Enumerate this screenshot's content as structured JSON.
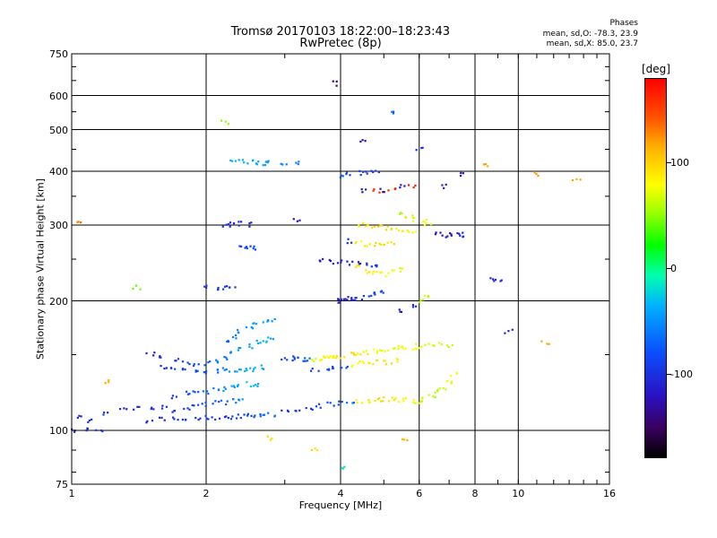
{
  "chart_data": {
    "type": "scatter",
    "title": "Tromsø 20170103 18:22:00–18:23:43",
    "subtitle": "RwPretec (8p)",
    "xlabel": "Frequency [MHz]",
    "ylabel": "Stationary phase Virtual Height [km]",
    "x_scale": "log",
    "y_scale": "log",
    "xlim": [
      1,
      16
    ],
    "ylim": [
      75,
      750
    ],
    "x_ticks": [
      "1",
      "2",
      "4",
      "6",
      "8",
      "10",
      "16"
    ],
    "y_ticks": [
      "75",
      "100",
      "200",
      "300",
      "400",
      "500",
      "600",
      "750"
    ],
    "grid": true,
    "colorbar": {
      "label": "[deg]",
      "ticks": [
        "100",
        "0",
        "-100"
      ],
      "range": [
        -180,
        180
      ]
    },
    "annotations": {
      "phase_title": "Phases",
      "phase_o": "mean, sd,O: -78.3, 23.9",
      "phase_x": "mean, sd,X:  85.0, 23.7"
    },
    "series": [
      {
        "points": [
          [
            1.05,
            108,
            -100
          ],
          [
            1.1,
            105,
            -100
          ],
          [
            1.2,
            110,
            -100
          ],
          [
            1.3,
            112,
            -105
          ],
          [
            1.4,
            113,
            -100
          ],
          [
            1.5,
            112,
            -105
          ],
          [
            1.6,
            113,
            -100
          ],
          [
            1.7,
            111,
            -100
          ],
          [
            1.8,
            113,
            -95
          ],
          [
            1.9,
            114,
            -90
          ],
          [
            2.0,
            115,
            -85
          ],
          [
            2.1,
            116,
            -80
          ],
          [
            2.2,
            116,
            -70
          ],
          [
            2.3,
            117,
            -60
          ],
          [
            2.4,
            117,
            -50
          ]
        ]
      },
      {
        "points": [
          [
            1.5,
            105,
            -105
          ],
          [
            1.6,
            106,
            -105
          ],
          [
            1.7,
            106,
            -100
          ],
          [
            1.8,
            107,
            -100
          ],
          [
            1.9,
            107,
            -100
          ],
          [
            2.0,
            107,
            -95
          ],
          [
            2.1,
            107,
            -95
          ],
          [
            2.2,
            107,
            -95
          ],
          [
            2.3,
            107,
            -90
          ],
          [
            2.4,
            108,
            -90
          ],
          [
            2.5,
            108,
            -85
          ],
          [
            2.6,
            108,
            -80
          ],
          [
            2.7,
            108,
            -70
          ],
          [
            2.8,
            109,
            -60
          ]
        ]
      },
      {
        "points": [
          [
            1.7,
            120,
            -95
          ],
          [
            1.8,
            122,
            -85
          ],
          [
            1.9,
            123,
            -80
          ],
          [
            2.0,
            123,
            -70
          ],
          [
            2.1,
            124,
            -60
          ],
          [
            2.2,
            125,
            -50
          ],
          [
            2.3,
            126,
            -45
          ],
          [
            2.4,
            127,
            -40
          ],
          [
            2.5,
            128,
            -35
          ],
          [
            2.6,
            128,
            -40
          ]
        ]
      },
      {
        "points": [
          [
            1.6,
            140,
            -100
          ],
          [
            1.7,
            139,
            -95
          ],
          [
            1.8,
            138,
            -90
          ],
          [
            1.9,
            137,
            -85
          ],
          [
            2.0,
            137,
            -80
          ],
          [
            2.1,
            137,
            -70
          ],
          [
            2.2,
            138,
            -60
          ],
          [
            2.3,
            138,
            -50
          ],
          [
            2.4,
            138,
            -45
          ],
          [
            2.5,
            139,
            -40
          ],
          [
            2.6,
            139,
            -40
          ],
          [
            2.7,
            140,
            -45
          ]
        ]
      },
      {
        "points": [
          [
            1.5,
            150,
            -105
          ],
          [
            1.6,
            148,
            -100
          ],
          [
            1.7,
            146,
            -95
          ],
          [
            1.8,
            144,
            -90
          ],
          [
            1.9,
            142,
            -80
          ],
          [
            2.0,
            143,
            -70
          ],
          [
            2.1,
            145,
            -65
          ],
          [
            2.2,
            148,
            -60
          ],
          [
            2.3,
            151,
            -55
          ],
          [
            2.4,
            154,
            -50
          ],
          [
            2.5,
            157,
            -45
          ],
          [
            2.6,
            160,
            -40
          ],
          [
            2.7,
            162,
            -40
          ],
          [
            2.8,
            165,
            -45
          ]
        ]
      },
      {
        "points": [
          [
            2.2,
            160,
            -70
          ],
          [
            2.3,
            165,
            -60
          ],
          [
            2.4,
            170,
            -55
          ],
          [
            2.5,
            173,
            -50
          ],
          [
            2.6,
            176,
            -45
          ],
          [
            2.7,
            178,
            -45
          ],
          [
            2.8,
            180,
            -50
          ]
        ]
      },
      {
        "points": [
          [
            3.0,
            147,
            -90
          ],
          [
            3.1,
            147,
            -90
          ],
          [
            3.2,
            147,
            -85
          ],
          [
            3.3,
            146,
            -80
          ],
          [
            3.4,
            146,
            -75
          ],
          [
            3.5,
            146,
            70
          ],
          [
            3.6,
            147,
            75
          ],
          [
            3.7,
            147,
            80
          ],
          [
            3.8,
            148,
            85
          ],
          [
            3.9,
            148,
            90
          ],
          [
            4.0,
            148,
            95
          ],
          [
            4.2,
            150,
            95
          ],
          [
            4.4,
            151,
            90
          ],
          [
            4.6,
            152,
            85
          ],
          [
            4.8,
            153,
            80
          ],
          [
            5.0,
            154,
            75
          ],
          [
            5.2,
            155,
            70
          ],
          [
            5.4,
            156,
            75
          ],
          [
            5.6,
            156,
            80
          ],
          [
            5.8,
            156,
            85
          ],
          [
            6.0,
            157,
            75
          ],
          [
            6.3,
            157,
            70
          ],
          [
            6.6,
            158,
            65
          ],
          [
            7.0,
            158,
            60
          ]
        ]
      },
      {
        "points": [
          [
            3.0,
            110,
            -100
          ],
          [
            3.2,
            112,
            -100
          ],
          [
            3.4,
            113,
            -95
          ],
          [
            3.6,
            114,
            -90
          ],
          [
            3.8,
            115,
            -85
          ],
          [
            4.0,
            116,
            -80
          ],
          [
            4.2,
            116,
            -70
          ],
          [
            4.4,
            117,
            85
          ],
          [
            4.6,
            117,
            90
          ],
          [
            4.8,
            118,
            95
          ],
          [
            5.0,
            118,
            100
          ],
          [
            5.2,
            118,
            95
          ],
          [
            5.4,
            118,
            90
          ],
          [
            5.6,
            118,
            80
          ],
          [
            5.8,
            117,
            75
          ],
          [
            6.0,
            117,
            70
          ],
          [
            6.2,
            118,
            65
          ],
          [
            6.4,
            120,
            60
          ],
          [
            6.6,
            123,
            60
          ],
          [
            6.8,
            126,
            65
          ],
          [
            7.0,
            130,
            70
          ],
          [
            7.2,
            135,
            75
          ]
        ]
      },
      {
        "points": [
          [
            3.5,
            138,
            -90
          ],
          [
            3.7,
            139,
            -85
          ],
          [
            3.9,
            140,
            -80
          ],
          [
            4.1,
            141,
            -75
          ],
          [
            4.3,
            142,
            80
          ],
          [
            4.5,
            143,
            85
          ],
          [
            4.7,
            143,
            90
          ],
          [
            4.9,
            144,
            95
          ],
          [
            5.1,
            144,
            95
          ],
          [
            5.3,
            145,
            90
          ]
        ]
      },
      {
        "points": [
          [
            3.9,
            200,
            -110
          ],
          [
            4.0,
            200,
            -110
          ],
          [
            4.1,
            201,
            -110
          ],
          [
            4.2,
            202,
            -105
          ],
          [
            4.3,
            203,
            -105
          ],
          [
            4.4,
            203,
            -100
          ],
          [
            4.6,
            205,
            -95
          ],
          [
            4.8,
            207,
            -90
          ],
          [
            5.0,
            210,
            -85
          ]
        ]
      },
      {
        "points": [
          [
            3.6,
            248,
            -115
          ],
          [
            3.8,
            247,
            -115
          ],
          [
            4.0,
            246,
            -110
          ],
          [
            4.2,
            245,
            -110
          ],
          [
            4.4,
            244,
            -105
          ],
          [
            4.6,
            243,
            -100
          ],
          [
            4.8,
            242,
            -95
          ]
        ]
      },
      {
        "points": [
          [
            4.4,
            240,
            90
          ],
          [
            4.6,
            235,
            90
          ],
          [
            4.8,
            232,
            85
          ],
          [
            5.0,
            231,
            80
          ],
          [
            5.2,
            233,
            75
          ],
          [
            5.4,
            236,
            70
          ]
        ]
      },
      {
        "points": [
          [
            4.4,
            300,
            90
          ],
          [
            4.6,
            298,
            95
          ],
          [
            4.8,
            297,
            100
          ],
          [
            5.0,
            296,
            100
          ],
          [
            5.2,
            295,
            95
          ],
          [
            5.4,
            294,
            90
          ],
          [
            5.6,
            292,
            85
          ],
          [
            5.8,
            290,
            80
          ]
        ]
      },
      {
        "points": [
          [
            4.2,
            275,
            -100
          ],
          [
            4.4,
            272,
            85
          ],
          [
            4.6,
            270,
            90
          ],
          [
            4.8,
            270,
            95
          ],
          [
            5.0,
            271,
            100
          ],
          [
            5.2,
            272,
            95
          ]
        ]
      },
      {
        "points": [
          [
            4.0,
            390,
            -80
          ],
          [
            4.2,
            393,
            -85
          ],
          [
            4.4,
            396,
            -90
          ],
          [
            4.6,
            399,
            -95
          ],
          [
            4.8,
            402,
            -100
          ]
        ]
      },
      {
        "points": [
          [
            4.5,
            360,
            -120
          ],
          [
            4.8,
            360,
            160
          ],
          [
            5.0,
            362,
            -120
          ],
          [
            5.2,
            365,
            165
          ],
          [
            5.5,
            368,
            -115
          ],
          [
            5.8,
            370,
            170
          ]
        ]
      },
      {
        "points": [
          [
            2.3,
            420,
            -40
          ],
          [
            2.4,
            421,
            -40
          ],
          [
            2.5,
            420,
            -45
          ],
          [
            2.6,
            419,
            -45
          ],
          [
            2.7,
            418,
            -50
          ],
          [
            2.8,
            418,
            -50
          ],
          [
            3.0,
            417,
            -55
          ],
          [
            3.2,
            417,
            -60
          ]
        ]
      },
      {
        "points": [
          [
            2.2,
            300,
            -100
          ],
          [
            2.3,
            301,
            -105
          ],
          [
            2.4,
            302,
            -105
          ],
          [
            2.5,
            301,
            -100
          ]
        ]
      },
      {
        "points": [
          [
            2.0,
            215,
            -100
          ],
          [
            2.1,
            214,
            -100
          ],
          [
            2.2,
            214,
            -95
          ],
          [
            2.3,
            215,
            -95
          ]
        ]
      },
      {
        "points": [
          [
            2.4,
            265,
            -90
          ],
          [
            2.5,
            265,
            -90
          ],
          [
            2.6,
            266,
            -85
          ]
        ]
      },
      {
        "points": [
          [
            5.5,
            320,
            60
          ],
          [
            5.7,
            315,
            65
          ],
          [
            5.9,
            310,
            70
          ],
          [
            6.1,
            305,
            75
          ],
          [
            6.3,
            300,
            80
          ]
        ]
      },
      {
        "points": [
          [
            6.6,
            285,
            -120
          ],
          [
            6.8,
            284,
            -115
          ],
          [
            7.0,
            284,
            -110
          ],
          [
            7.3,
            285,
            -105
          ],
          [
            7.6,
            285,
            -100
          ]
        ]
      },
      {
        "points": [
          [
            5.5,
            190,
            -110
          ],
          [
            5.8,
            195,
            -105
          ],
          [
            6.0,
            200,
            60
          ],
          [
            6.2,
            205,
            65
          ]
        ]
      },
      {
        "points": [
          [
            8.8,
            225,
            -105
          ],
          [
            9.0,
            225,
            -100
          ]
        ]
      },
      {
        "points": [
          [
            1.0,
            100,
            -100
          ],
          [
            1.1,
            101,
            -105
          ],
          [
            1.15,
            99,
            -100
          ]
        ]
      },
      {
        "points": [
          [
            1.05,
            308,
            130
          ],
          [
            1.4,
            215,
            45
          ],
          [
            2.2,
            520,
            50
          ],
          [
            3.5,
            90,
            100
          ],
          [
            4.0,
            82,
            -20
          ],
          [
            3.9,
            640,
            -140
          ],
          [
            5.2,
            550,
            -70
          ],
          [
            8.5,
            415,
            120
          ],
          [
            11.0,
            395,
            120
          ],
          [
            13.5,
            385,
            120
          ],
          [
            3.2,
            310,
            -120
          ],
          [
            6.8,
            370,
            -110
          ],
          [
            7.5,
            395,
            -120
          ],
          [
            9.5,
            170,
            -110
          ],
          [
            11.5,
            160,
            120
          ],
          [
            4.5,
            470,
            -120
          ],
          [
            2.8,
            96,
            95
          ],
          [
            1.2,
            130,
            115
          ],
          [
            5.6,
            95,
            110
          ],
          [
            6.0,
            450,
            -100
          ]
        ]
      }
    ]
  }
}
